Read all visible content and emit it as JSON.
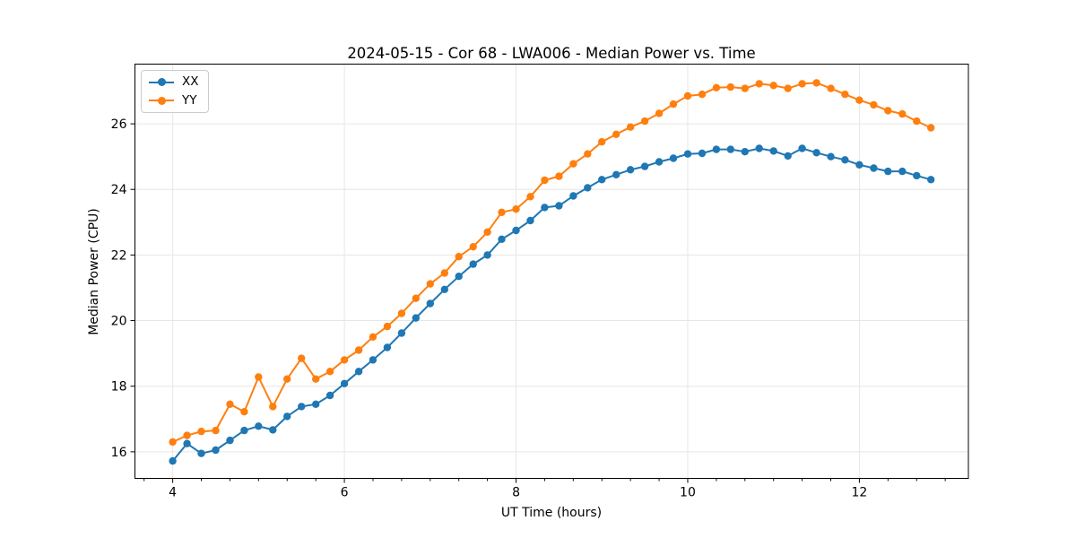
{
  "chart_data": {
    "type": "line",
    "title": "2024-05-15 - Cor 68 - LWA006 - Median Power vs. Time",
    "xlabel": "UT Time (hours)",
    "ylabel": "Median Power (CPU)",
    "xlim": [
      3.56,
      13.27
    ],
    "ylim": [
      15.19,
      27.82
    ],
    "xticks": [
      4,
      6,
      8,
      10,
      12
    ],
    "yticks": [
      16,
      18,
      20,
      22,
      24,
      26
    ],
    "x_minor_step": 0.3333333,
    "grid": true,
    "legend_position": "upper left",
    "marker": "circle",
    "x": [
      4.0,
      4.167,
      4.333,
      4.5,
      4.667,
      4.833,
      5.0,
      5.167,
      5.333,
      5.5,
      5.667,
      5.833,
      6.0,
      6.167,
      6.333,
      6.5,
      6.667,
      6.833,
      7.0,
      7.167,
      7.333,
      7.5,
      7.667,
      7.833,
      8.0,
      8.167,
      8.333,
      8.5,
      8.667,
      8.833,
      9.0,
      9.167,
      9.333,
      9.5,
      9.667,
      9.833,
      10.0,
      10.167,
      10.333,
      10.5,
      10.667,
      10.833,
      11.0,
      11.167,
      11.333,
      11.5,
      11.667,
      11.833,
      12.0,
      12.167,
      12.333,
      12.5,
      12.667,
      12.833
    ],
    "series": [
      {
        "name": "XX",
        "color": "#1f77b4",
        "values": [
          15.72,
          16.25,
          15.95,
          16.05,
          16.35,
          16.65,
          16.78,
          16.67,
          17.08,
          17.38,
          17.45,
          17.72,
          18.08,
          18.45,
          18.8,
          19.18,
          19.62,
          20.08,
          20.52,
          20.95,
          21.35,
          21.72,
          22.0,
          22.48,
          22.75,
          23.05,
          23.45,
          23.5,
          23.8,
          24.05,
          24.3,
          24.45,
          24.6,
          24.7,
          24.84,
          24.95,
          25.08,
          25.1,
          25.22,
          25.22,
          25.15,
          25.25,
          25.17,
          25.02,
          25.25,
          25.12,
          25.0,
          24.9,
          24.75,
          24.65,
          24.55,
          24.55,
          24.42,
          24.3
        ]
      },
      {
        "name": "YY",
        "color": "#ff7f0e",
        "values": [
          16.3,
          16.5,
          16.62,
          16.65,
          17.45,
          17.22,
          18.28,
          17.38,
          18.22,
          18.85,
          18.22,
          18.45,
          18.8,
          19.1,
          19.5,
          19.82,
          20.22,
          20.68,
          21.12,
          21.45,
          21.95,
          22.25,
          22.7,
          23.3,
          23.4,
          23.78,
          24.28,
          24.4,
          24.78,
          25.08,
          25.45,
          25.68,
          25.9,
          26.08,
          26.32,
          26.6,
          26.85,
          26.9,
          27.1,
          27.12,
          27.08,
          27.22,
          27.17,
          27.08,
          27.22,
          27.25,
          27.08,
          26.9,
          26.72,
          26.58,
          26.4,
          26.3,
          26.08,
          25.88
        ]
      }
    ]
  }
}
